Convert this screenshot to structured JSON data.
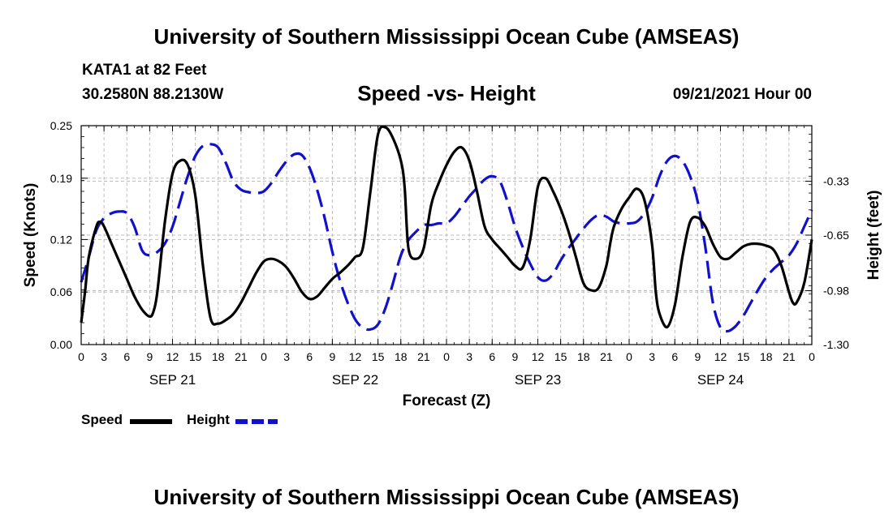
{
  "header": {
    "title": "University of Southern Mississippi Ocean Cube (AMSEAS)",
    "station": "KATA1 at 82 Feet",
    "coordinates": "30.2580N  88.2130W",
    "datetime": "09/21/2021 Hour 00",
    "footer_title": "University of Southern Mississippi Ocean Cube (AMSEAS)"
  },
  "chart_data": {
    "type": "line",
    "title": "Speed -vs- Height",
    "xlabel": "Forecast (Z)",
    "ylabel": "Speed (Knots)",
    "y2label": "Height (feet)",
    "x_range": [
      0,
      96
    ],
    "ylim": [
      0,
      0.25
    ],
    "y2lim": [
      -1.3,
      0.0
    ],
    "grid": true,
    "x_tick_hours": [
      0,
      3,
      6,
      9,
      12,
      15,
      18,
      21,
      24,
      27,
      30,
      33,
      36,
      39,
      42,
      45,
      48,
      51,
      54,
      57,
      60,
      63,
      66,
      69,
      72,
      75,
      78,
      81,
      84,
      87,
      90,
      93,
      96
    ],
    "x_tick_labels": [
      "0",
      "3",
      "6",
      "9",
      "12",
      "15",
      "18",
      "21",
      "0",
      "3",
      "6",
      "9",
      "12",
      "15",
      "18",
      "21",
      "0",
      "3",
      "6",
      "9",
      "12",
      "15",
      "18",
      "21",
      "0",
      "3",
      "6",
      "9",
      "12",
      "15",
      "18",
      "21",
      "0"
    ],
    "date_labels": [
      {
        "hour": 12,
        "label": "SEP 21"
      },
      {
        "hour": 36,
        "label": "SEP 22"
      },
      {
        "hour": 60,
        "label": "SEP 23"
      },
      {
        "hour": 84,
        "label": "SEP 24"
      }
    ],
    "y_ticks": [
      0.0,
      0.06,
      0.12,
      0.19,
      0.25
    ],
    "y_tick_labels": [
      "0.00",
      "0.06",
      "0.12",
      "0.19",
      "0.25"
    ],
    "y2_ticks": [
      -0.33,
      -0.65,
      -0.98,
      -1.3
    ],
    "y2_tick_labels": [
      "-0.33",
      "-0.65",
      "-0.98",
      "-1.30"
    ],
    "series": [
      {
        "name": "Speed",
        "axis": "left",
        "color": "#000000",
        "style": "solid",
        "x": [
          0,
          0.5,
          1,
          2,
          2.5,
          3,
          4,
          5,
          6,
          7,
          8,
          9,
          9.5,
          10,
          11,
          12,
          13,
          14,
          15,
          16,
          17,
          18,
          19,
          20,
          21,
          22,
          23,
          24,
          25,
          26,
          27,
          28,
          29,
          30,
          31,
          32,
          33,
          34,
          35,
          36,
          37,
          38,
          39,
          40,
          41,
          42,
          42.5,
          43,
          44,
          45,
          46,
          47,
          48,
          49,
          50,
          51,
          52,
          53,
          54,
          55,
          56,
          57,
          58,
          59,
          60,
          61,
          62,
          63,
          64,
          65,
          66,
          67,
          68,
          69,
          69.5,
          70,
          71,
          72,
          73,
          74,
          75,
          75.5,
          76,
          77,
          78,
          79,
          80,
          81,
          82,
          83,
          84,
          85,
          86,
          87,
          88,
          89,
          90,
          91,
          92,
          93,
          93.5,
          94,
          95,
          96
        ],
        "values": [
          0.025,
          0.06,
          0.1,
          0.135,
          0.14,
          0.135,
          0.115,
          0.095,
          0.075,
          0.055,
          0.04,
          0.032,
          0.038,
          0.06,
          0.14,
          0.195,
          0.21,
          0.205,
          0.17,
          0.09,
          0.03,
          0.024,
          0.028,
          0.035,
          0.048,
          0.065,
          0.082,
          0.095,
          0.098,
          0.095,
          0.088,
          0.075,
          0.06,
          0.052,
          0.055,
          0.065,
          0.075,
          0.082,
          0.09,
          0.1,
          0.11,
          0.175,
          0.24,
          0.248,
          0.235,
          0.21,
          0.18,
          0.11,
          0.098,
          0.11,
          0.16,
          0.185,
          0.205,
          0.22,
          0.225,
          0.21,
          0.175,
          0.135,
          0.12,
          0.11,
          0.1,
          0.09,
          0.088,
          0.12,
          0.18,
          0.19,
          0.175,
          0.155,
          0.13,
          0.1,
          0.07,
          0.062,
          0.065,
          0.09,
          0.115,
          0.135,
          0.155,
          0.168,
          0.178,
          0.165,
          0.115,
          0.06,
          0.035,
          0.02,
          0.045,
          0.1,
          0.14,
          0.145,
          0.135,
          0.115,
          0.1,
          0.098,
          0.105,
          0.112,
          0.115,
          0.115,
          0.113,
          0.108,
          0.09,
          0.06,
          0.048,
          0.048,
          0.07,
          0.12
        ]
      },
      {
        "name": "Height",
        "axis": "right",
        "color": "#1111cc",
        "style": "dashed",
        "x": [
          0,
          1,
          2,
          3,
          4,
          5,
          6,
          7,
          8,
          9,
          10,
          11,
          12,
          13,
          14,
          15,
          16,
          17,
          18,
          19,
          20,
          21,
          22,
          23,
          24,
          25,
          26,
          27,
          28,
          29,
          30,
          31,
          32,
          33,
          34,
          35,
          36,
          37,
          38,
          39,
          40,
          41,
          42,
          43,
          44,
          45,
          46,
          47,
          48,
          49,
          50,
          51,
          52,
          53,
          54,
          55,
          56,
          57,
          58,
          59,
          60,
          61,
          62,
          63,
          64,
          65,
          66,
          67,
          68,
          69,
          70,
          71,
          72,
          73,
          74,
          75,
          76,
          77,
          78,
          79,
          80,
          81,
          82,
          83,
          84,
          85,
          86,
          87,
          88,
          89,
          90,
          91,
          92,
          93,
          94,
          95,
          96
        ],
        "values": [
          -0.93,
          -0.78,
          -0.62,
          -0.55,
          -0.52,
          -0.51,
          -0.52,
          -0.6,
          -0.74,
          -0.77,
          -0.75,
          -0.7,
          -0.6,
          -0.45,
          -0.3,
          -0.18,
          -0.12,
          -0.11,
          -0.13,
          -0.22,
          -0.33,
          -0.38,
          -0.395,
          -0.4,
          -0.39,
          -0.34,
          -0.27,
          -0.21,
          -0.17,
          -0.175,
          -0.25,
          -0.38,
          -0.55,
          -0.75,
          -0.92,
          -1.05,
          -1.15,
          -1.2,
          -1.21,
          -1.18,
          -1.08,
          -0.93,
          -0.77,
          -0.68,
          -0.63,
          -0.59,
          -0.59,
          -0.58,
          -0.58,
          -0.54,
          -0.48,
          -0.42,
          -0.37,
          -0.32,
          -0.3,
          -0.33,
          -0.45,
          -0.6,
          -0.72,
          -0.82,
          -0.9,
          -0.92,
          -0.88,
          -0.8,
          -0.73,
          -0.67,
          -0.61,
          -0.56,
          -0.53,
          -0.54,
          -0.57,
          -0.58,
          -0.58,
          -0.57,
          -0.52,
          -0.43,
          -0.3,
          -0.21,
          -0.18,
          -0.21,
          -0.3,
          -0.45,
          -0.72,
          -1.05,
          -1.2,
          -1.22,
          -1.19,
          -1.13,
          -1.05,
          -0.97,
          -0.9,
          -0.85,
          -0.81,
          -0.77,
          -0.7,
          -0.6,
          -0.5
        ]
      }
    ]
  },
  "legend": {
    "speed_label": "Speed",
    "height_label": "Height"
  }
}
